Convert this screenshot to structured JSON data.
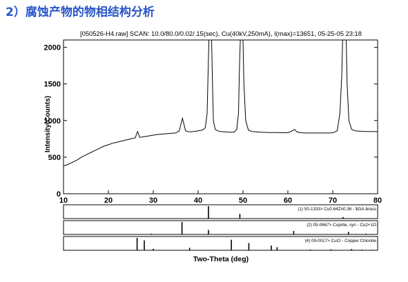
{
  "slide": {
    "title": "2）腐蚀产物的物相结构分析"
  },
  "scan_info": "[050526-H4.raw] SCAN: 10.0/80.0/0.02/.15(sec), Cu(40kV,250mA), I(max)=13651, 05-25-05 23:18",
  "colors": {
    "title": "#2a55c8",
    "curve": "#000000",
    "frame": "#000000"
  },
  "chart_data": {
    "type": "line",
    "xlabel": "Two-Theta (deg)",
    "ylabel": "Intensity(Counts)",
    "xlim": [
      10,
      80
    ],
    "ylim": [
      0,
      2100
    ],
    "x_ticks": [
      10,
      20,
      30,
      40,
      50,
      60,
      70,
      80
    ],
    "y_ticks": [
      0,
      500,
      1000,
      1500,
      2000
    ],
    "grid": false,
    "series": [
      {
        "x": [
          10,
          11,
          12,
          13,
          14,
          15,
          16,
          17,
          18,
          19,
          20,
          21,
          22,
          23,
          24,
          25,
          26,
          26.2,
          26.5,
          26.8,
          27,
          28,
          29,
          30,
          31,
          32,
          33,
          34,
          35,
          35.8,
          36.2,
          36.5,
          36.8,
          37.2,
          38,
          39,
          40,
          41,
          41.6,
          42,
          42.2,
          42.4,
          42.6,
          42.8,
          43,
          43.2,
          43.4,
          43.8,
          44.3,
          45,
          46,
          47,
          48,
          48.6,
          49,
          49.2,
          49.4,
          49.6,
          49.8,
          50,
          50.2,
          50.6,
          51.2,
          52,
          53,
          54,
          55,
          56,
          57,
          58,
          59,
          60,
          61,
          61.5,
          62,
          63,
          64,
          65,
          66,
          67,
          68,
          69,
          70,
          71,
          71.6,
          72,
          72.2,
          72.4,
          72.6,
          72.8,
          73,
          73.2,
          73.6,
          74.2,
          75,
          76,
          77,
          78,
          79,
          80
        ],
        "y": [
          380,
          400,
          430,
          460,
          500,
          530,
          560,
          590,
          620,
          650,
          670,
          690,
          705,
          720,
          735,
          750,
          765,
          800,
          850,
          800,
          770,
          780,
          790,
          800,
          810,
          815,
          820,
          825,
          830,
          860,
          960,
          1030,
          960,
          860,
          845,
          850,
          860,
          870,
          900,
          1100,
          1600,
          2100,
          2100,
          2100,
          2100,
          1500,
          1000,
          880,
          860,
          850,
          845,
          840,
          840,
          880,
          1100,
          1700,
          2100,
          2100,
          2100,
          2100,
          1500,
          1000,
          870,
          850,
          845,
          840,
          838,
          836,
          835,
          834,
          833,
          833,
          860,
          880,
          845,
          832,
          830,
          830,
          830,
          830,
          830,
          830,
          832,
          860,
          1100,
          1600,
          2100,
          2100,
          2100,
          2100,
          2100,
          1500,
          1000,
          880,
          860,
          855,
          850,
          850,
          850,
          848
        ]
      }
    ],
    "references": [
      {
        "label": "(1) 50-1333> Cu0.64Zn0.36 - $GA-brass",
        "peaks": [
          {
            "x": 42.3,
            "h": 1.0
          },
          {
            "x": 49.3,
            "h": 0.38
          },
          {
            "x": 72.3,
            "h": 0.12
          }
        ]
      },
      {
        "label": "(2) 05-0667> Cuprite, syn - Cu2+1O",
        "peaks": [
          {
            "x": 29.6,
            "h": 0.06
          },
          {
            "x": 36.4,
            "h": 1.0
          },
          {
            "x": 42.3,
            "h": 0.36
          },
          {
            "x": 61.3,
            "h": 0.28
          },
          {
            "x": 73.5,
            "h": 0.2
          },
          {
            "x": 77.4,
            "h": 0.06
          }
        ]
      },
      {
        "label": "(4) 09-0017> CuCl - Copper Chloride",
        "peaks": [
          {
            "x": 26.4,
            "h": 1.0
          },
          {
            "x": 28.0,
            "h": 0.8
          },
          {
            "x": 30.0,
            "h": 0.12
          },
          {
            "x": 38.1,
            "h": 0.2
          },
          {
            "x": 47.4,
            "h": 0.85
          },
          {
            "x": 51.3,
            "h": 0.58
          },
          {
            "x": 56.3,
            "h": 0.38
          },
          {
            "x": 57.6,
            "h": 0.25
          },
          {
            "x": 65.0,
            "h": 0.06
          },
          {
            "x": 69.6,
            "h": 0.08
          },
          {
            "x": 74.2,
            "h": 0.1
          },
          {
            "x": 76.5,
            "h": 0.05
          },
          {
            "x": 78.9,
            "h": 0.04
          }
        ]
      }
    ]
  }
}
